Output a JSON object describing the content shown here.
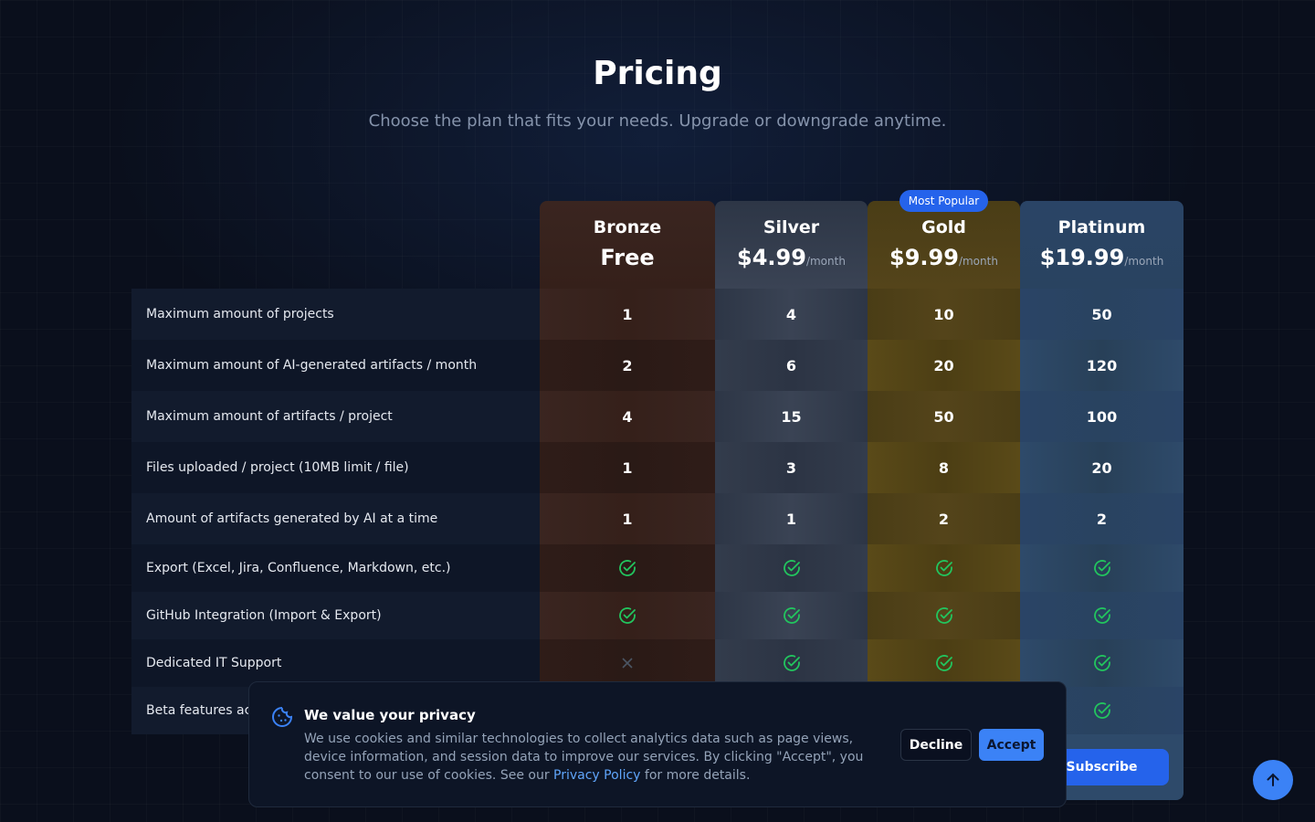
{
  "header": {
    "title": "Pricing",
    "subtitle": "Choose the plan that fits your needs. Upgrade or downgrade anytime."
  },
  "plans": [
    {
      "name": "Bronze",
      "price": "Free"
    },
    {
      "name": "Silver",
      "price": "$4.99",
      "period": "/month"
    },
    {
      "name": "Gold",
      "price": "$9.99",
      "period": "/month",
      "badge": "Most Popular"
    },
    {
      "name": "Platinum",
      "price": "$19.99",
      "period": "/month",
      "button": "Subscribe"
    }
  ],
  "features": [
    {
      "label": "Maximum amount of projects",
      "values": [
        1,
        4,
        10,
        50
      ]
    },
    {
      "label": "Maximum amount of AI-generated artifacts / month",
      "values": [
        2,
        6,
        20,
        120
      ]
    },
    {
      "label": "Maximum amount of artifacts / project",
      "values": [
        4,
        15,
        50,
        100
      ]
    },
    {
      "label": "Files uploaded / project (10MB limit / file)",
      "values": [
        1,
        3,
        8,
        20
      ]
    },
    {
      "label": "Amount of artifacts generated by AI at a time",
      "values": [
        1,
        1,
        2,
        2
      ]
    },
    {
      "label": "Export (Excel, Jira, Confluence, Markdown, etc.)",
      "values": [
        true,
        true,
        true,
        true
      ]
    },
    {
      "label": "GitHub Integration (Import & Export)",
      "values": [
        true,
        true,
        true,
        true
      ]
    },
    {
      "label": "Dedicated IT Support",
      "values": [
        false,
        true,
        true,
        true
      ]
    },
    {
      "label": "Beta features acc",
      "values": [
        null,
        null,
        null,
        true
      ]
    }
  ],
  "cookie_banner": {
    "title": "We value your privacy",
    "text": "We use cookies and similar technologies to collect analytics data such as page views, device information, and session data to improve our services. By clicking \"Accept\", you consent to our use of cookies. See our ",
    "link": "Privacy Policy",
    "text_end": " for more details.",
    "decline": "Decline",
    "accept": "Accept"
  }
}
